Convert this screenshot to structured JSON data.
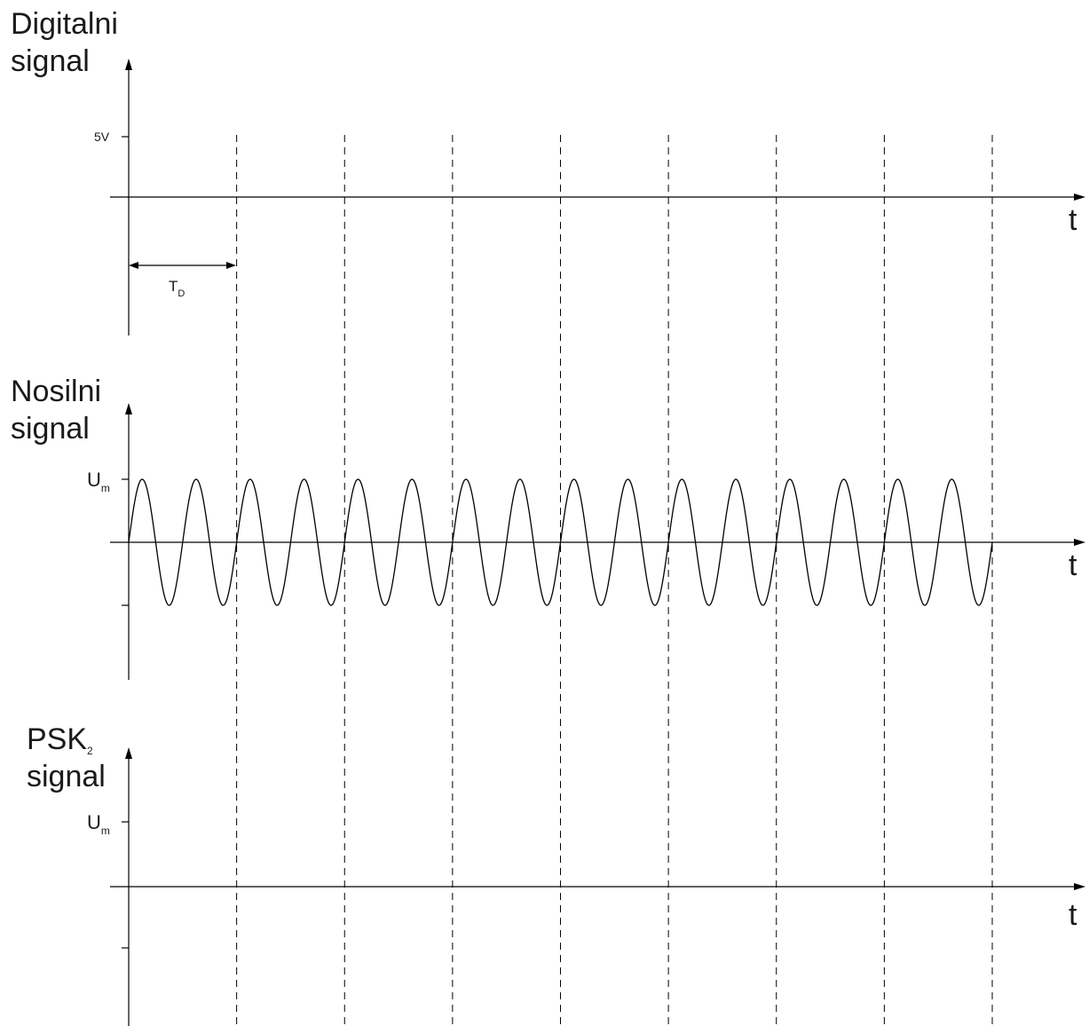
{
  "panels": [
    {
      "title_lines": [
        "Digitalni",
        "signal"
      ],
      "level_label": "5V",
      "axis_label": "t",
      "period_label": {
        "main": "T",
        "sub": "D"
      }
    },
    {
      "title_lines": [
        "Nosilni",
        "signal"
      ],
      "level_label": {
        "main": "U",
        "sub": "m"
      },
      "axis_label": "t",
      "carrier_cycles": 16
    },
    {
      "title_lines": [
        {
          "main": "PSK",
          "sub": "2"
        },
        "signal"
      ],
      "level_label": {
        "main": "U",
        "sub": "m"
      },
      "axis_label": "t"
    }
  ],
  "bit_intervals": 8
}
